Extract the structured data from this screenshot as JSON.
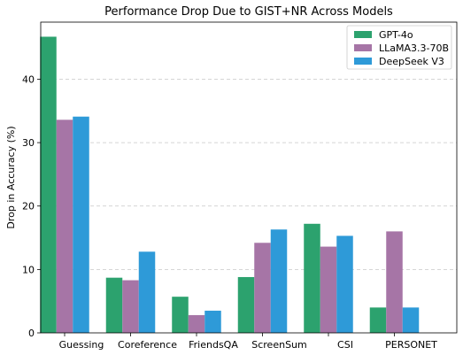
{
  "chart_data": {
    "type": "bar",
    "title": "Performance Drop Due to GIST+NR Across Models",
    "xlabel": "",
    "ylabel": "Drop in Accuracy (%)",
    "categories": [
      "Guessing",
      "Coreference",
      "FriendsQA",
      "ScreenSum",
      "CSI",
      "PERSONET"
    ],
    "series": [
      {
        "name": "GPT-4o",
        "color": "#2ca26e",
        "values": [
          46.7,
          8.7,
          5.7,
          8.8,
          17.2,
          4.0
        ]
      },
      {
        "name": "LLaMA3.3-70B",
        "color": "#a675a6",
        "values": [
          33.6,
          8.3,
          2.8,
          14.2,
          13.6,
          16.0
        ]
      },
      {
        "name": "DeepSeek V3",
        "color": "#2e9ad8",
        "values": [
          34.1,
          12.8,
          3.5,
          16.3,
          15.3,
          4.0
        ]
      }
    ],
    "ylim": [
      0,
      49
    ],
    "yticks": [
      0,
      10,
      20,
      30,
      40
    ],
    "grid": "horizontal dashed",
    "legend_position": "top-right"
  }
}
